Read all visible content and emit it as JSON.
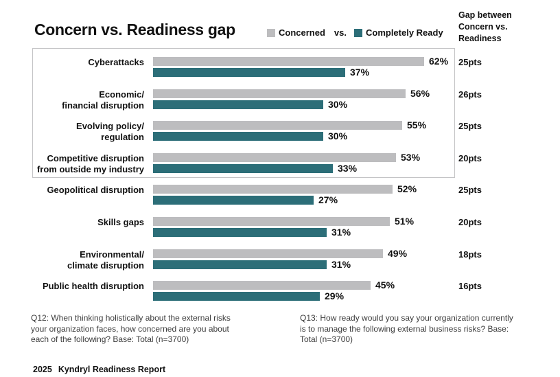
{
  "title": "Concern vs. Readiness gap",
  "legend": {
    "concerned_label": "Concerned",
    "vs_label": "vs.",
    "ready_label": "Completely Ready"
  },
  "gap_header": "Gap between\nConcern vs.\nReadiness",
  "colors": {
    "concerned_bar": "#bdbdbf",
    "ready_bar": "#2c6e78",
    "highlight_box_border": "#c4c4c6"
  },
  "chart_data": {
    "type": "bar",
    "orientation": "horizontal",
    "categories": [
      "Cyberattacks",
      "Economic/\nfinancial disruption",
      "Evolving policy/\nregulation",
      "Competitive disruption\nfrom outside my industry",
      "Geopolitical disruption",
      "Skills gaps",
      "Environmental/\nclimate disruption",
      "Public health disruption"
    ],
    "series": [
      {
        "name": "Concerned",
        "color": "#bdbdbf",
        "values": [
          62,
          56,
          55,
          53,
          52,
          51,
          49,
          45
        ]
      },
      {
        "name": "Completely Ready",
        "color": "#2c6e78",
        "values": [
          37,
          30,
          30,
          33,
          27,
          31,
          31,
          29
        ]
      }
    ],
    "value_suffix": "%",
    "gaps": [
      "25pts",
      "26pts",
      "25pts",
      "20pts",
      "25pts",
      "20pts",
      "18pts",
      "16pts"
    ],
    "highlighted_group_indexes": [
      0,
      1,
      2,
      3
    ],
    "legend_position": "top",
    "grid": false
  },
  "footnotes": {
    "q12": "Q12: When thinking holistically about the external risks\nyour organization faces, how concerned are you about\neach of the following? Base: Total (n=3700)",
    "q13": "Q13: How ready would you say your organization currently\nis to manage the following external business risks? Base:\nTotal (n=3700)"
  },
  "footer": {
    "year": "2025",
    "title": "Kyndryl Readiness Report"
  }
}
